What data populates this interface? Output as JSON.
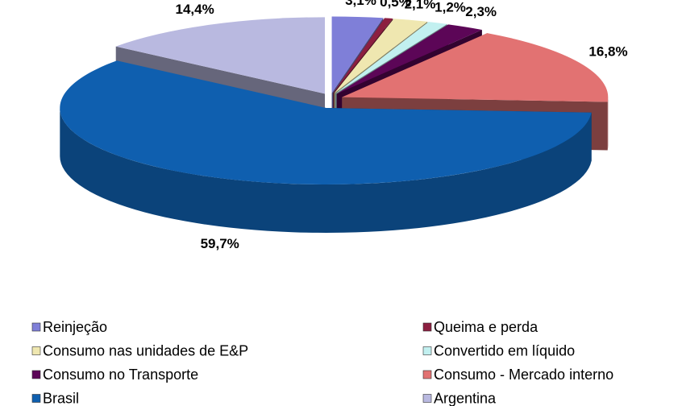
{
  "chart_data": {
    "type": "pie",
    "categories": [
      "Reinjeção",
      "Queima e perda",
      "Consumo nas unidades de E&P",
      "Convertido em líquido",
      "Consumo no Transporte",
      "Consumo - Mercado interno",
      "Brasil",
      "Argentina"
    ],
    "values": [
      3.1,
      0.5,
      2.1,
      1.2,
      2.3,
      16.8,
      59.7,
      14.4
    ],
    "value_labels": [
      "3,1%",
      "0,5%",
      "2,1%",
      "1,2%",
      "2,3%",
      "16,8%",
      "59,7%",
      "14,4%"
    ],
    "colors": [
      "#7f7fd8",
      "#8c1f40",
      "#efe7b0",
      "#c2f0f0",
      "#5c0657",
      "#e27272",
      "#0f5faf",
      "#b9b9e0"
    ],
    "legend": "bottom"
  }
}
